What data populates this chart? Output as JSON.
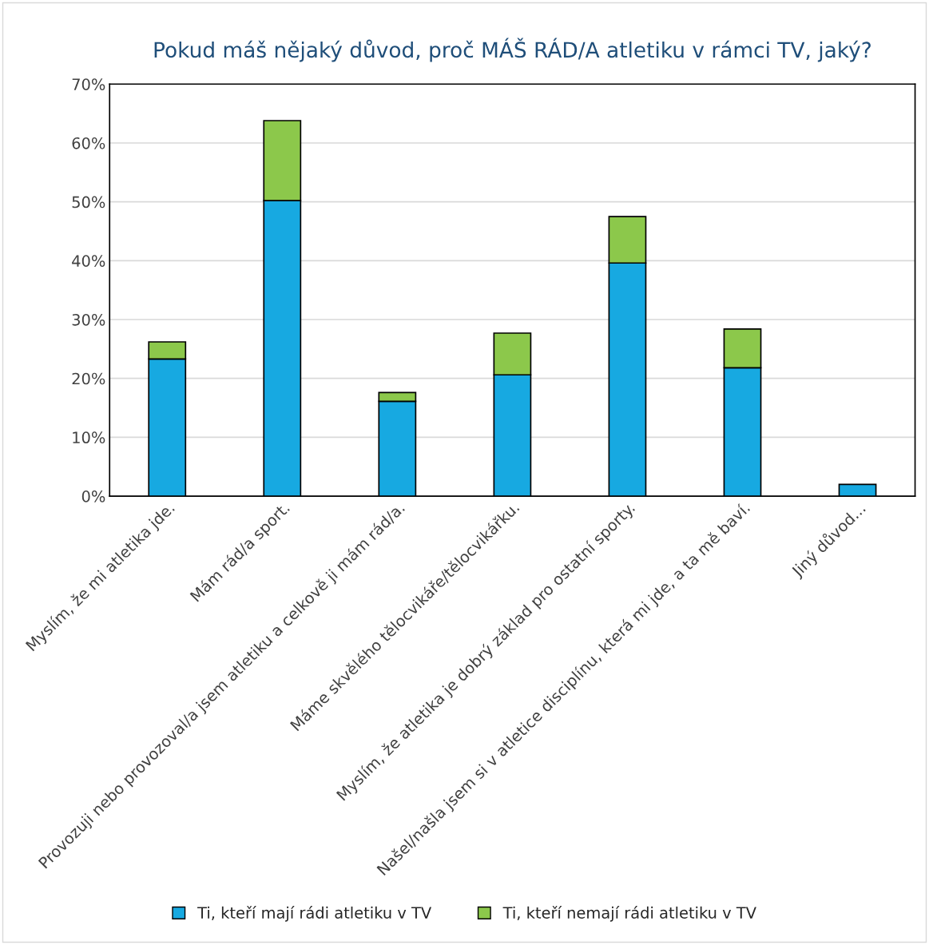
{
  "chart_data": {
    "type": "bar",
    "title": "Pokud máš nějaký důvod, proč MÁŠ RÁD/A atletiku v rámci TV, jaký?",
    "categories": [
      "Myslím, že mi atletika jde.",
      "Mám rád/a sport.",
      "Provozuji nebo provozoval/a jsem atletiku a celkově ji mám rád/a.",
      "Máme skvělého tělocvikáře/tělocvikářku.",
      "Myslím, že atletika je dobrý základ pro ostatní sporty.",
      "Našel/našla jsem si v atletice disciplínu, která mi jde, a ta mě baví.",
      "Jiný důvod..."
    ],
    "stacked": true,
    "series": [
      {
        "name": "Ti, kteří mají rádi atletiku v TV",
        "color": "#17a9e1",
        "values": [
          23.3,
          50.2,
          16.1,
          20.6,
          39.6,
          21.8,
          2.0
        ]
      },
      {
        "name": "Ti, kteří nemají rádi atletiku v TV",
        "color": "#8cc84b",
        "values": [
          2.9,
          13.6,
          1.5,
          7.1,
          7.9,
          6.6,
          null
        ]
      }
    ],
    "ylim": [
      0,
      70
    ],
    "yticks": [
      {
        "value": 0,
        "label": "0%"
      },
      {
        "value": 10,
        "label": "10%"
      },
      {
        "value": 20,
        "label": "20%"
      },
      {
        "value": 30,
        "label": "30%"
      },
      {
        "value": 40,
        "label": "40%"
      },
      {
        "value": 50,
        "label": "50%"
      },
      {
        "value": 60,
        "label": "60%"
      },
      {
        "value": 70,
        "label": "70%"
      }
    ],
    "grid": "y",
    "legend": "bottom"
  }
}
